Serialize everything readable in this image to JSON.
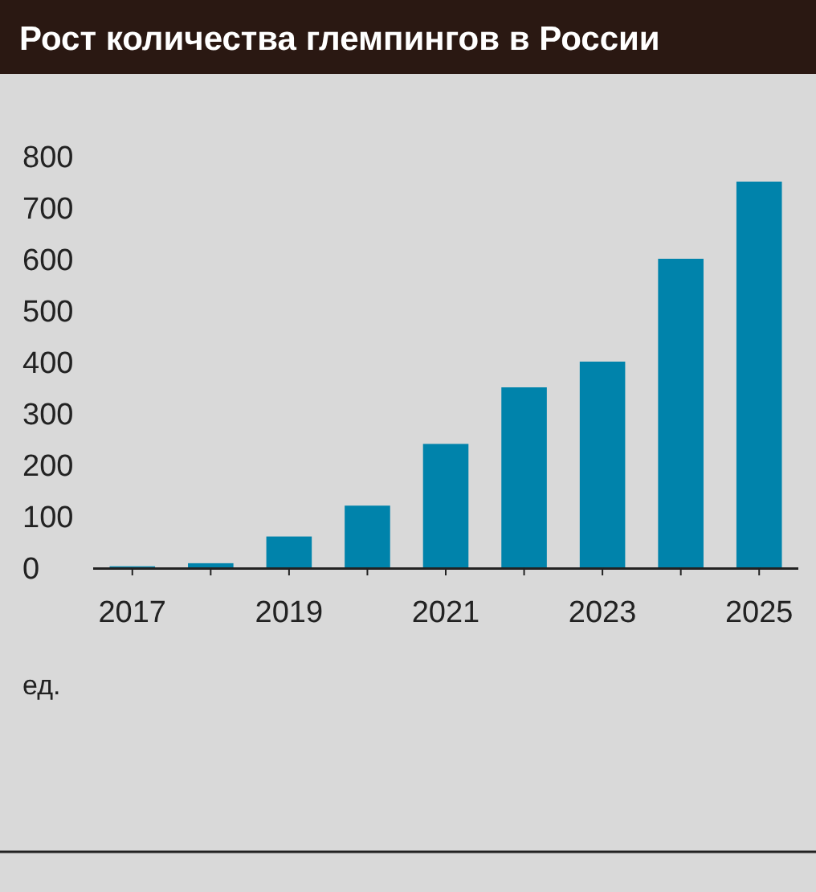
{
  "chart_data": {
    "type": "bar",
    "title": "Рост количества глемпингов в России",
    "ylabel": "ед.",
    "categories": [
      "2017",
      null,
      "2019",
      null,
      "2021",
      null,
      "2023",
      null,
      "2025"
    ],
    "values": [
      2,
      8,
      60,
      120,
      240,
      350,
      400,
      600,
      750
    ],
    "color": "#0083ab",
    "ylim": [
      0,
      800
    ],
    "yticks": [
      0,
      100,
      200,
      300,
      400,
      500,
      600,
      700,
      800
    ],
    "grid": false
  }
}
